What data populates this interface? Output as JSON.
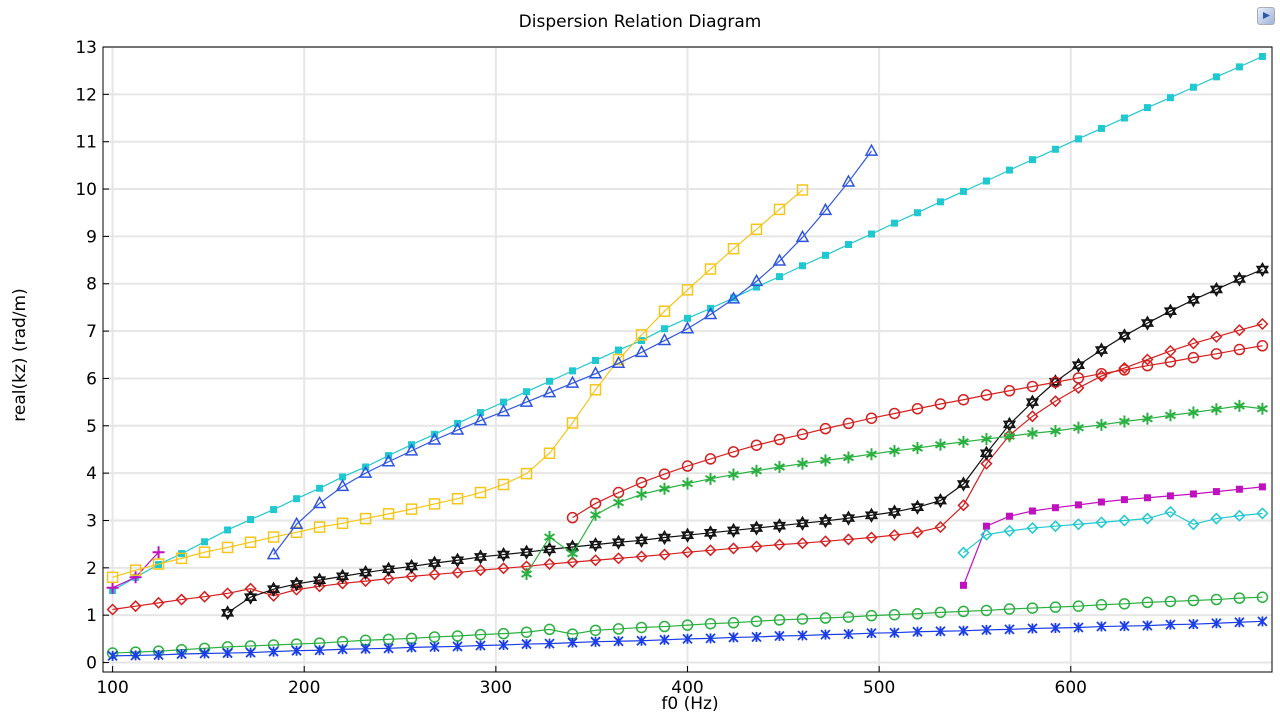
{
  "header": {
    "icon": "app-logo-icon"
  },
  "chart_data": {
    "type": "line",
    "title": "Dispersion Relation Diagram",
    "xlabel": "f0 (Hz)",
    "ylabel": "real(kz) (rad/m)",
    "xlim": [
      95,
      705
    ],
    "ylim": [
      -0.2,
      13
    ],
    "xticks": [
      100,
      200,
      300,
      400,
      500,
      600
    ],
    "yticks": [
      0,
      1,
      2,
      3,
      4,
      5,
      6,
      7,
      8,
      9,
      10,
      11,
      12,
      13
    ],
    "grid": true,
    "series": [
      {
        "color": "#20c8d0",
        "marker": "filled-square",
        "x": [
          100,
          112,
          124,
          136,
          148,
          160,
          172,
          184,
          196,
          208,
          220,
          232,
          244,
          256,
          268,
          280,
          292,
          304,
          316,
          328,
          340,
          352,
          364,
          376,
          388,
          400,
          412,
          424,
          436,
          448,
          460,
          472,
          484,
          496,
          508,
          520,
          532,
          544,
          556,
          568,
          580,
          592,
          604,
          616,
          628,
          640,
          652,
          664,
          676,
          688,
          700
        ],
        "y": [
          1.52,
          1.8,
          2.07,
          2.3,
          2.55,
          2.8,
          3.02,
          3.23,
          3.46,
          3.68,
          3.92,
          4.13,
          4.37,
          4.6,
          4.82,
          5.05,
          5.28,
          5.5,
          5.72,
          5.94,
          6.16,
          6.38,
          6.6,
          6.8,
          7.05,
          7.27,
          7.48,
          7.7,
          7.93,
          8.15,
          8.38,
          8.6,
          8.83,
          9.05,
          9.28,
          9.5,
          9.73,
          9.95,
          10.17,
          10.4,
          10.62,
          10.84,
          11.06,
          11.28,
          11.5,
          11.72,
          11.93,
          12.15,
          12.37,
          12.58,
          12.8
        ]
      },
      {
        "color": "#c010c0",
        "marker": "plus",
        "x": [
          100,
          112,
          124
        ],
        "y": [
          1.58,
          1.8,
          2.33
        ]
      },
      {
        "color": "#f5c518",
        "marker": "open-square",
        "x": [
          100,
          112,
          124,
          136,
          148,
          160,
          172,
          184,
          196,
          208,
          220,
          232,
          244,
          256,
          268,
          280,
          292,
          304,
          316,
          328,
          340,
          352,
          364,
          376,
          388,
          400,
          412,
          424,
          436,
          448,
          460
        ],
        "y": [
          1.8,
          1.95,
          2.08,
          2.2,
          2.33,
          2.43,
          2.54,
          2.65,
          2.75,
          2.86,
          2.94,
          3.04,
          3.14,
          3.24,
          3.35,
          3.46,
          3.59,
          3.76,
          3.99,
          4.42,
          5.06,
          5.76,
          6.4,
          6.92,
          7.42,
          7.87,
          8.31,
          8.74,
          9.15,
          9.57,
          9.98
        ]
      },
      {
        "color": "#2f55e0",
        "marker": "open-triangle",
        "x": [
          184,
          196,
          208,
          220,
          232,
          244,
          256,
          268,
          280,
          292,
          304,
          316,
          328,
          340,
          352,
          364,
          376,
          388,
          400,
          412,
          424,
          436,
          448,
          460,
          472,
          484,
          496
        ],
        "y": [
          2.28,
          2.92,
          3.36,
          3.72,
          4.0,
          4.24,
          4.47,
          4.7,
          4.91,
          5.11,
          5.3,
          5.5,
          5.7,
          5.9,
          6.1,
          6.32,
          6.55,
          6.8,
          7.05,
          7.35,
          7.68,
          8.05,
          8.48,
          8.98,
          9.55,
          10.15,
          10.8
        ]
      },
      {
        "color": "#d42020",
        "marker": "open-diamond",
        "x": [
          100,
          112,
          124,
          136,
          148,
          160,
          172,
          184,
          196,
          208,
          220,
          232,
          244,
          256,
          268,
          280,
          292,
          304,
          316,
          328,
          340,
          352,
          364,
          376,
          388,
          400,
          412,
          424,
          436,
          448,
          460,
          472,
          484,
          496,
          508,
          520,
          532,
          544,
          556,
          568,
          580,
          592,
          604,
          616,
          628,
          640,
          652,
          664,
          676,
          688,
          700
        ],
        "y": [
          1.12,
          1.19,
          1.26,
          1.33,
          1.39,
          1.46,
          1.56,
          1.41,
          1.54,
          1.61,
          1.67,
          1.72,
          1.77,
          1.82,
          1.86,
          1.9,
          1.95,
          1.99,
          2.03,
          2.08,
          2.12,
          2.16,
          2.2,
          2.24,
          2.28,
          2.33,
          2.37,
          2.41,
          2.45,
          2.49,
          2.52,
          2.56,
          2.6,
          2.64,
          2.69,
          2.75,
          2.86,
          3.32,
          4.2,
          4.8,
          5.2,
          5.52,
          5.8,
          6.05,
          6.22,
          6.4,
          6.58,
          6.74,
          6.88,
          7.02,
          7.15
        ]
      },
      {
        "color": "#111111",
        "marker": "hexagram",
        "x": [
          160,
          172,
          184,
          196,
          208,
          220,
          232,
          244,
          256,
          268,
          280,
          292,
          304,
          316,
          328,
          340,
          352,
          364,
          376,
          388,
          400,
          412,
          424,
          436,
          448,
          460,
          472,
          484,
          496,
          508,
          520,
          532,
          544,
          556,
          568,
          580,
          592,
          604,
          616,
          628,
          640,
          652,
          664,
          676,
          688,
          700
        ],
        "y": [
          1.05,
          1.38,
          1.55,
          1.66,
          1.74,
          1.82,
          1.9,
          1.97,
          2.03,
          2.1,
          2.16,
          2.23,
          2.28,
          2.33,
          2.39,
          2.44,
          2.49,
          2.54,
          2.58,
          2.64,
          2.69,
          2.74,
          2.79,
          2.84,
          2.89,
          2.94,
          2.99,
          3.05,
          3.11,
          3.18,
          3.28,
          3.42,
          3.77,
          4.42,
          5.03,
          5.5,
          5.93,
          6.28,
          6.6,
          6.9,
          7.17,
          7.42,
          7.66,
          7.88,
          8.1,
          8.3
        ]
      },
      {
        "color": "#d42020",
        "marker": "open-circle",
        "x": [
          340,
          352,
          364,
          376,
          388,
          400,
          412,
          424,
          436,
          448,
          460,
          472,
          484,
          496,
          508,
          520,
          532,
          544,
          556,
          568,
          580,
          592,
          604,
          616,
          628,
          640,
          652,
          664,
          676,
          688,
          700
        ],
        "y": [
          3.06,
          3.36,
          3.59,
          3.8,
          3.98,
          4.15,
          4.3,
          4.45,
          4.59,
          4.71,
          4.82,
          4.94,
          5.05,
          5.16,
          5.26,
          5.36,
          5.46,
          5.55,
          5.65,
          5.74,
          5.83,
          5.92,
          6.01,
          6.1,
          6.18,
          6.27,
          6.35,
          6.44,
          6.52,
          6.61,
          6.69
        ]
      },
      {
        "color": "#2ab040",
        "marker": "asterisk",
        "x": [
          316,
          328,
          340,
          352,
          364,
          376,
          388,
          400,
          412,
          424,
          436,
          448,
          460,
          472,
          484,
          496,
          508,
          520,
          532,
          544,
          556,
          568,
          580,
          592,
          604,
          616,
          628,
          640,
          652,
          664,
          676,
          688,
          700
        ],
        "y": [
          1.87,
          2.65,
          2.3,
          3.12,
          3.38,
          3.55,
          3.67,
          3.78,
          3.88,
          3.97,
          4.05,
          4.13,
          4.2,
          4.27,
          4.33,
          4.4,
          4.47,
          4.53,
          4.6,
          4.66,
          4.72,
          4.78,
          4.84,
          4.89,
          4.96,
          5.02,
          5.09,
          5.15,
          5.22,
          5.28,
          5.35,
          5.42,
          5.36
        ]
      },
      {
        "color": "#c010c0",
        "marker": "filled-square",
        "x": [
          544,
          556,
          568,
          580,
          592,
          604,
          616,
          628,
          640,
          652,
          664,
          676,
          688,
          700
        ],
        "y": [
          1.63,
          2.88,
          3.09,
          3.2,
          3.27,
          3.33,
          3.39,
          3.44,
          3.48,
          3.52,
          3.56,
          3.61,
          3.66,
          3.71
        ]
      },
      {
        "color": "#20c8d0",
        "marker": "open-diamond",
        "x": [
          544,
          556,
          568,
          580,
          592,
          604,
          616,
          628,
          640,
          652,
          664,
          676,
          688,
          700
        ],
        "y": [
          2.32,
          2.7,
          2.78,
          2.84,
          2.88,
          2.92,
          2.96,
          3.0,
          3.04,
          3.18,
          2.92,
          3.04,
          3.1,
          3.15
        ]
      },
      {
        "color": "#2ab040",
        "marker": "open-circle",
        "x": [
          100,
          112,
          124,
          136,
          148,
          160,
          172,
          184,
          196,
          208,
          220,
          232,
          244,
          256,
          268,
          280,
          292,
          304,
          316,
          328,
          340,
          352,
          364,
          376,
          388,
          400,
          412,
          424,
          436,
          448,
          460,
          472,
          484,
          496,
          508,
          520,
          532,
          544,
          556,
          568,
          580,
          592,
          604,
          616,
          628,
          640,
          652,
          664,
          676,
          688,
          700
        ],
        "y": [
          0.2,
          0.22,
          0.24,
          0.27,
          0.3,
          0.33,
          0.35,
          0.37,
          0.39,
          0.41,
          0.44,
          0.47,
          0.49,
          0.51,
          0.54,
          0.56,
          0.59,
          0.61,
          0.64,
          0.7,
          0.6,
          0.68,
          0.71,
          0.74,
          0.76,
          0.79,
          0.82,
          0.84,
          0.87,
          0.9,
          0.92,
          0.94,
          0.96,
          0.99,
          1.01,
          1.03,
          1.06,
          1.08,
          1.1,
          1.13,
          1.15,
          1.17,
          1.19,
          1.22,
          1.24,
          1.27,
          1.29,
          1.31,
          1.33,
          1.36,
          1.38
        ]
      },
      {
        "color": "#1a3de8",
        "marker": "star",
        "x": [
          100,
          112,
          124,
          136,
          148,
          160,
          172,
          184,
          196,
          208,
          220,
          232,
          244,
          256,
          268,
          280,
          292,
          304,
          316,
          328,
          340,
          352,
          364,
          376,
          388,
          400,
          412,
          424,
          436,
          448,
          460,
          472,
          484,
          496,
          508,
          520,
          532,
          544,
          556,
          568,
          580,
          592,
          604,
          616,
          628,
          640,
          652,
          664,
          676,
          688,
          700
        ],
        "y": [
          0.14,
          0.15,
          0.16,
          0.18,
          0.19,
          0.2,
          0.21,
          0.23,
          0.25,
          0.26,
          0.28,
          0.29,
          0.3,
          0.32,
          0.33,
          0.34,
          0.36,
          0.37,
          0.39,
          0.4,
          0.42,
          0.44,
          0.45,
          0.46,
          0.48,
          0.5,
          0.51,
          0.53,
          0.54,
          0.56,
          0.57,
          0.59,
          0.6,
          0.62,
          0.63,
          0.65,
          0.66,
          0.67,
          0.69,
          0.7,
          0.72,
          0.73,
          0.74,
          0.76,
          0.77,
          0.78,
          0.8,
          0.81,
          0.83,
          0.85,
          0.87
        ]
      }
    ]
  }
}
